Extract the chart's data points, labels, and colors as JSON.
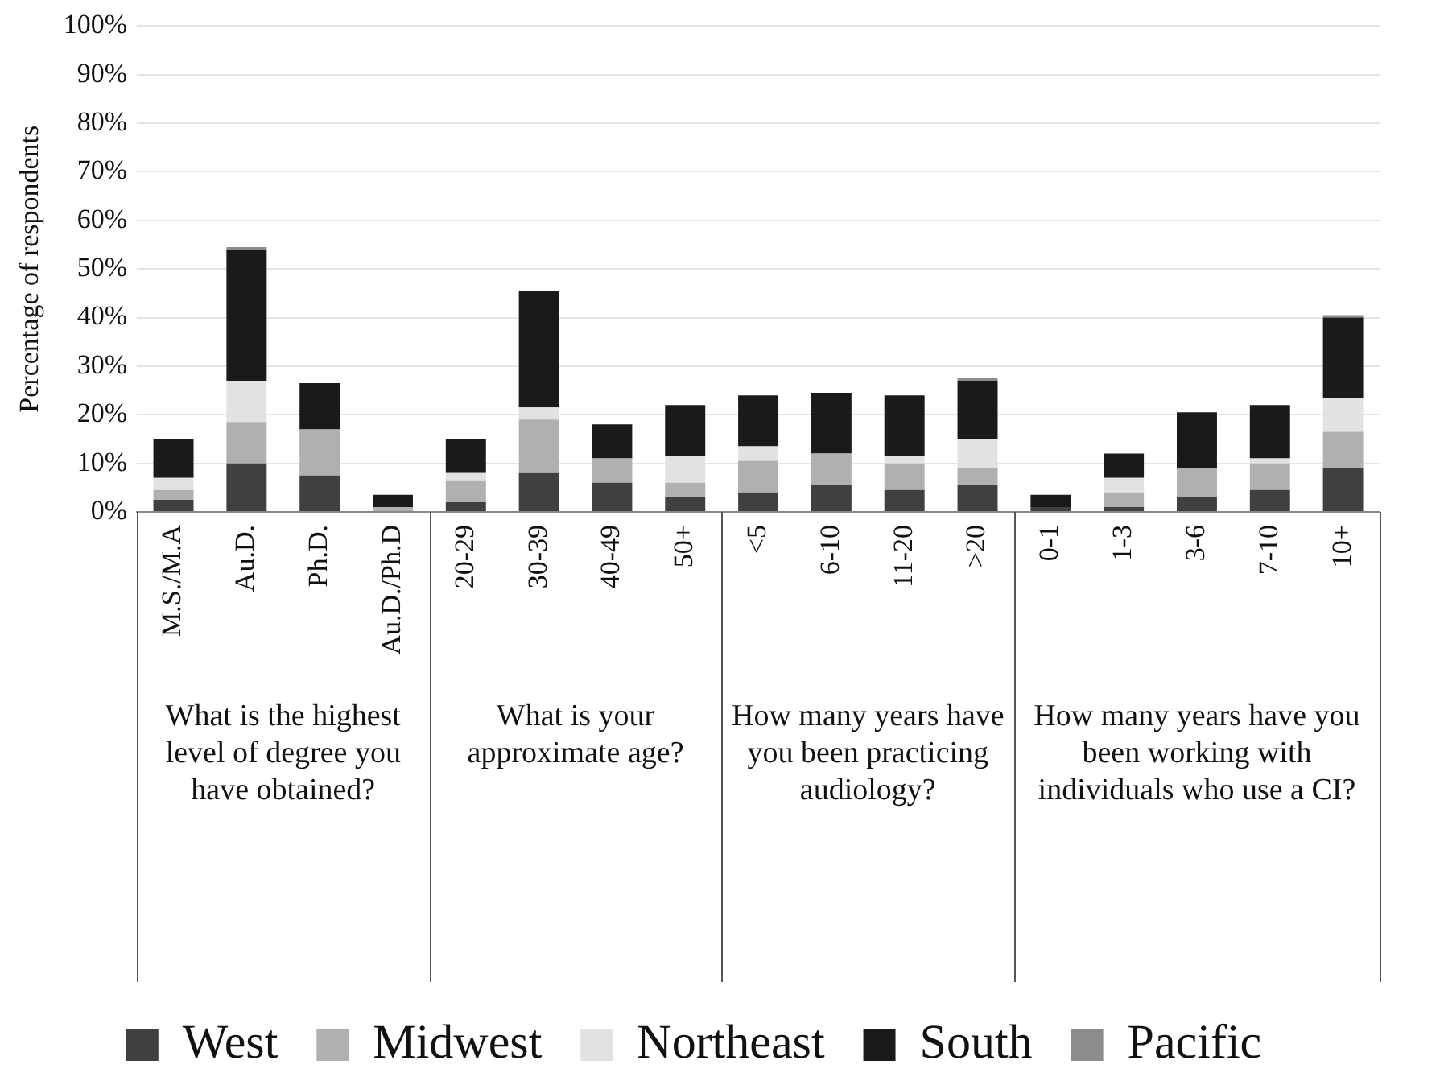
{
  "chart_data": {
    "type": "bar",
    "stacked": true,
    "ylabel": "Percentage of respondents",
    "categories": [
      "M.S./M.A",
      "Au.D.",
      "Ph.D.",
      "Au.D./Ph.D",
      "20-29",
      "30-39",
      "40-49",
      "50+",
      "<5",
      "6-10",
      "11-20",
      ">20",
      "0-1",
      "1-3",
      "3-6",
      "7-10",
      "10+"
    ],
    "series": [
      {
        "name": "West",
        "color": "#404040",
        "values": [
          2.5,
          10,
          7.5,
          0,
          2,
          8,
          6,
          3,
          4,
          5.5,
          4.5,
          5.5,
          1,
          1,
          3,
          4.5,
          9
        ]
      },
      {
        "name": "Midwest",
        "color": "#b0b0b0",
        "values": [
          2,
          8.5,
          9.5,
          1,
          4.5,
          11,
          5,
          3,
          6.5,
          6.5,
          5.5,
          3.5,
          0,
          3,
          6,
          5.5,
          7.5
        ]
      },
      {
        "name": "Northeast",
        "color": "#e2e2e2",
        "values": [
          2.5,
          8.5,
          0,
          0,
          1.5,
          2.5,
          0,
          5.5,
          3,
          0,
          1.5,
          6,
          0,
          3,
          0,
          1,
          7
        ]
      },
      {
        "name": "South",
        "color": "#1a1a1a",
        "values": [
          8,
          27,
          9.5,
          2.5,
          7,
          24,
          7,
          10.5,
          10.5,
          12.5,
          12.5,
          12,
          2.5,
          5,
          11.5,
          11,
          16.5
        ]
      },
      {
        "name": "Pacific",
        "color": "#8c8c8c",
        "values": [
          0,
          0.5,
          0,
          0,
          0,
          0,
          0,
          0,
          0,
          0,
          0,
          0.5,
          0,
          0,
          0,
          0,
          0.5
        ]
      }
    ],
    "ylim": [
      0,
      100
    ],
    "yticks": [
      {
        "value": 0,
        "label": "0%"
      },
      {
        "value": 10,
        "label": "10%"
      },
      {
        "value": 20,
        "label": "20%"
      },
      {
        "value": 30,
        "label": "30%"
      },
      {
        "value": 40,
        "label": "40%"
      },
      {
        "value": 50,
        "label": "50%"
      },
      {
        "value": 60,
        "label": "60%"
      },
      {
        "value": 70,
        "label": "70%"
      },
      {
        "value": 80,
        "label": "80%"
      },
      {
        "value": 90,
        "label": "90%"
      },
      {
        "value": 100,
        "label": "100%"
      }
    ],
    "grid": "y",
    "legend": "bottom",
    "annotations": [
      "What is the highest level of degree you have obtained?",
      "What is your approximate age?",
      "How many years have you been practicing audiology?",
      "How many years have you been working with individuals who use a CI?"
    ]
  }
}
